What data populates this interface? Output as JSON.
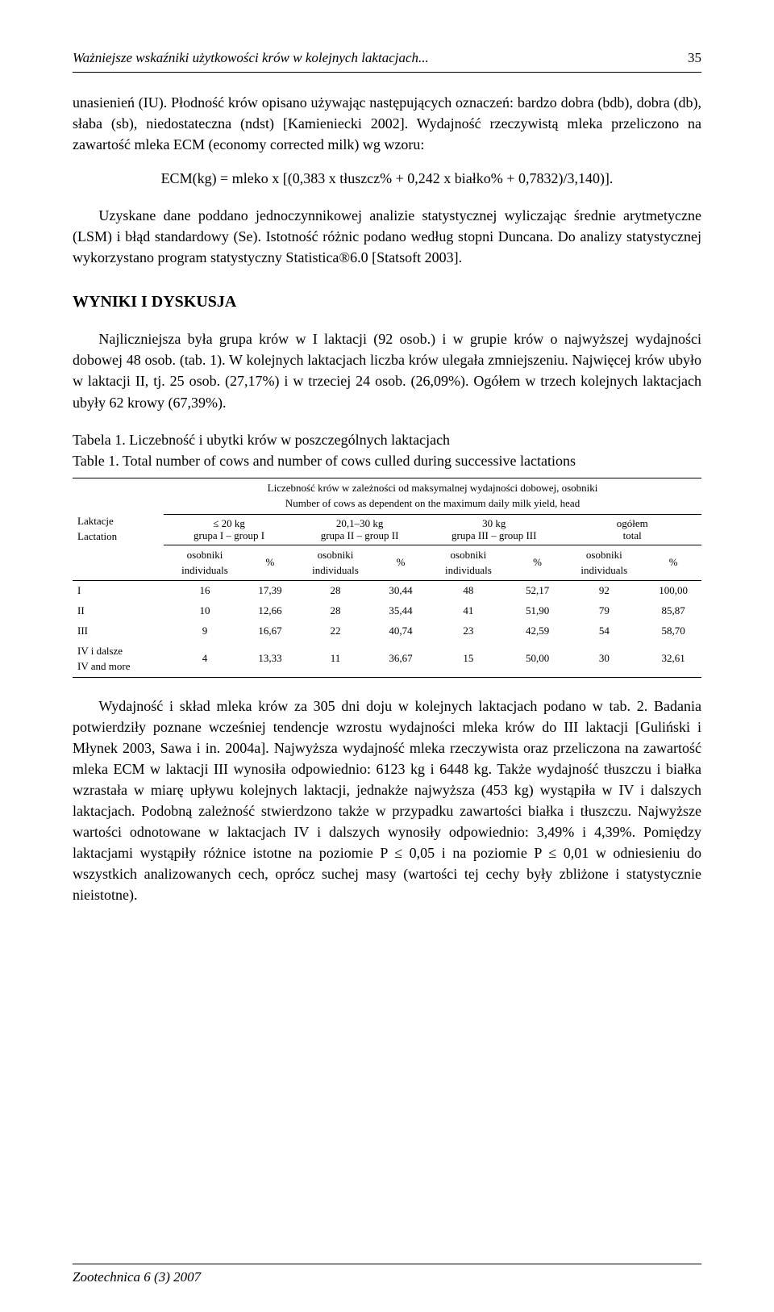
{
  "header": {
    "title": "Ważniejsze wskaźniki użytkowości krów w kolejnych laktacjach...",
    "page": "35"
  },
  "para1": "unasienień (IU). Płodność krów opisano używając następujących oznaczeń: bardzo dobra (bdb), dobra (db), słaba (sb), niedostateczna (ndst) [Kamieniecki 2002]. Wydajność rzeczywistą mleka przeliczono na zawartość mleka ECM (economy corrected milk) wg wzoru:",
  "formula": "ECM(kg) = mleko x [(0,383 x tłuszcz% + 0,242 x białko% + 0,7832)/3,140)].",
  "para2": "Uzyskane dane poddano jednoczynnikowej analizie statystycznej wyliczając średnie arytmetyczne (LSM) i błąd standardowy (Se). Istotność różnic podano według stopni Duncana. Do analizy statystycznej wykorzystano program statystyczny Statistica®6.0 [Statsoft 2003].",
  "section_heading": "WYNIKI I DYSKUSJA",
  "para3": "Najliczniejsza była grupa krów w I laktacji (92 osob.) i w grupie krów o najwyższej wydajności dobowej 48 osob. (tab. 1). W kolejnych laktacjach liczba krów ulegała zmniejszeniu. Najwięcej krów ubyło w laktacji II, tj. 25 osob. (27,17%) i w trzeciej 24 osob. (26,09%). Ogółem w trzech kolejnych laktacjach ubyły 62 krowy (67,39%).",
  "table1": {
    "caption_pl": "Tabela 1. Liczebność i ubytki krów w poszczególnych laktacjach",
    "caption_en": "Table 1. Total number of cows and number of cows culled during successive lactations",
    "super_header_pl": "Liczebność krów w zależności od maksymalnej wydajności dobowej, osobniki",
    "super_header_en": "Number of cows as dependent on the maximum daily milk yield, head",
    "rowhead_pl": "Laktacje",
    "rowhead_en": "Lactation",
    "groups": [
      {
        "range": "≤ 20 kg",
        "label": "grupa I – group I"
      },
      {
        "range": "20,1–30 kg",
        "label": "grupa II – group II"
      },
      {
        "range": "30 kg",
        "label": "grupa III – group III"
      },
      {
        "range": "ogółem",
        "label": "total"
      }
    ],
    "subcol_pl": "osobniki",
    "subcol_en": "individuals",
    "subcol_pct": "%",
    "rows": [
      {
        "label": "I",
        "cells": [
          "16",
          "17,39",
          "28",
          "30,44",
          "48",
          "52,17",
          "92",
          "100,00"
        ]
      },
      {
        "label": "II",
        "cells": [
          "10",
          "12,66",
          "28",
          "35,44",
          "41",
          "51,90",
          "79",
          "85,87"
        ]
      },
      {
        "label": "III",
        "cells": [
          "9",
          "16,67",
          "22",
          "40,74",
          "23",
          "42,59",
          "54",
          "58,70"
        ]
      },
      {
        "label_pl": "IV i dalsze",
        "label_en": "IV and more",
        "cells": [
          "4",
          "13,33",
          "11",
          "36,67",
          "15",
          "50,00",
          "30",
          "32,61"
        ]
      }
    ]
  },
  "para4": "Wydajność i skład mleka krów za 305 dni doju w kolejnych laktacjach podano w tab. 2. Badania potwierdziły poznane wcześniej tendencje wzrostu wydajności mleka krów do III laktacji [Guliński i Młynek 2003, Sawa i in. 2004a]. Najwyższa wydajność mleka rzeczywista oraz przeliczona na zawartość mleka ECM w laktacji III wynosiła odpowiednio: 6123 kg i 6448 kg. Także wydajność tłuszczu i białka wzrastała w miarę upływu kolejnych laktacji, jednakże najwyższa (453 kg) wystąpiła w IV i dalszych laktacjach. Podobną zależność stwierdzono także w przypadku zawartości białka i tłuszczu. Najwyższe wartości odnotowane w laktacjach IV i dalszych wynosiły odpowiednio: 3,49% i 4,39%. Pomiędzy laktacjami wystąpiły różnice istotne na poziomie P ≤ 0,05 i na poziomie P ≤ 0,01 w odniesieniu do wszystkich analizowanych cech, oprócz suchej masy (wartości tej cechy były zbliżone i statystycznie nieistotne).",
  "footer": "Zootechnica 6 (3) 2007"
}
